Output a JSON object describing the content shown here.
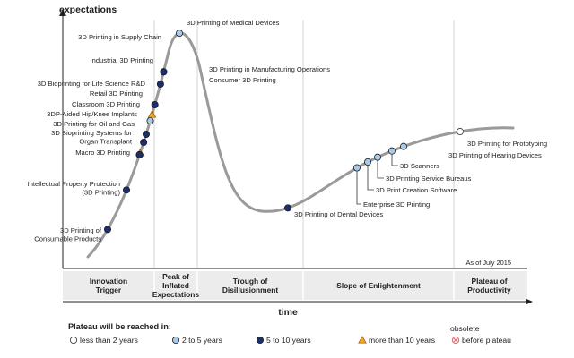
{
  "axes": {
    "y_label": "expectations",
    "x_label": "time",
    "as_of": "As of July 2015"
  },
  "phases": [
    {
      "label_lines": [
        "Innovation",
        "Trigger"
      ]
    },
    {
      "label_lines": [
        "Peak of",
        "Inflated",
        "Expectations"
      ]
    },
    {
      "label_lines": [
        "Trough of",
        "Disillusionment"
      ]
    },
    {
      "label_lines": [
        "Slope of Enlightenment"
      ]
    },
    {
      "label_lines": [
        "Plateau of",
        "Productivity"
      ]
    }
  ],
  "technologies": [
    {
      "label": "3D Printing of Consumable Products",
      "label_lines": [
        "3D Printing of",
        "Consumable Products"
      ],
      "category": "5-10"
    },
    {
      "label": "Intellectual Property Protection (3D Printing)",
      "label_lines": [
        "Intellectual Property Protection",
        "(3D Printing)"
      ],
      "category": "5-10"
    },
    {
      "label": "Macro 3D Printing",
      "label_lines": [
        "Macro 3D Printing"
      ],
      "category": ">10"
    },
    {
      "label": "3D Bioprinting Systems for Organ Transplant",
      "label_lines": [
        "3D Bioprinting Systems for",
        "Organ Transplant"
      ],
      "category": "5-10"
    },
    {
      "label": "3D Printing for Oil and Gas",
      "label_lines": [
        "3D Printing for Oil and Gas"
      ],
      "category": "5-10"
    },
    {
      "label": "3DP-Aided Hip/Knee Implants",
      "label_lines": [
        "3DP-Aided Hip/Knee Implants"
      ],
      "category": "2-5"
    },
    {
      "label": "Classroom 3D Printing",
      "label_lines": [
        "Classroom 3D Printing"
      ],
      "category": ">10"
    },
    {
      "label": "Retail 3D Printing",
      "label_lines": [
        "Retail 3D Printing"
      ],
      "category": "5-10"
    },
    {
      "label": "3D Bioprinting for Life Science R&D",
      "label_lines": [
        "3D Bioprinting for Life Science R&D"
      ],
      "category": "5-10"
    },
    {
      "label": "Industrial 3D Printing",
      "label_lines": [
        "Industrial 3D Printing"
      ],
      "category": "5-10"
    },
    {
      "label": "3D Printing in Supply Chain",
      "label_lines": [
        "3D Printing in Supply Chain"
      ],
      "category": "5-10"
    },
    {
      "label": "3D Printing of Medical Devices",
      "label_lines": [
        "3D Printing of Medical Devices"
      ],
      "category": "2-5"
    },
    {
      "label": "3D Printing in Manufacturing Operations",
      "label_lines": [
        "3D Printing in Manufacturing Operations"
      ],
      "category": "5-10"
    },
    {
      "label": "Consumer 3D Printing",
      "label_lines": [
        "Consumer 3D Printing"
      ],
      "category": "5-10"
    },
    {
      "label": "3D Printing of Dental Devices",
      "label_lines": [
        "3D Printing of Dental Devices"
      ],
      "category": "5-10"
    },
    {
      "label": "Enterprise 3D Printing",
      "label_lines": [
        "Enterprise 3D Printing"
      ],
      "category": "2-5"
    },
    {
      "label": "3D Print Creation Software",
      "label_lines": [
        "3D Print Creation Software"
      ],
      "category": "2-5"
    },
    {
      "label": "3D Printing Service Bureaus",
      "label_lines": [
        "3D Printing Service Bureaus"
      ],
      "category": "2-5"
    },
    {
      "label": "3D Scanners",
      "label_lines": [
        "3D Scanners"
      ],
      "category": "2-5"
    },
    {
      "label": "3D Printing of Hearing Devices",
      "label_lines": [
        "3D Printing of Hearing Devices"
      ],
      "category": "2-5"
    },
    {
      "label": "3D Printing for Prototyping",
      "label_lines": [
        "3D Printing for Prototyping"
      ],
      "category": "<2"
    }
  ],
  "legend": {
    "title": "Plateau will be reached in:",
    "items": [
      {
        "key": "<2",
        "label": "less than 2 years",
        "marker": "circle",
        "color": "#ffffff"
      },
      {
        "key": "2-5",
        "label": "2 to 5 years",
        "marker": "circle",
        "color": "#a9c9ea"
      },
      {
        "key": "5-10",
        "label": "5 to 10 years",
        "marker": "circle",
        "color": "#1c2e6e"
      },
      {
        "key": ">10",
        "label": "more than 10 years",
        "marker": "triangle",
        "color": "#f1a528"
      },
      {
        "key": "obsolete",
        "label_lines": [
          "obsolete",
          "before plateau"
        ],
        "marker": "cross-circle",
        "color": "#e06a6a"
      }
    ]
  },
  "colors": {
    "curve": "#9a9a9a",
    "divider": "#c8c8c8",
    "text": "#222222",
    "phase_bar": "#ececec"
  }
}
